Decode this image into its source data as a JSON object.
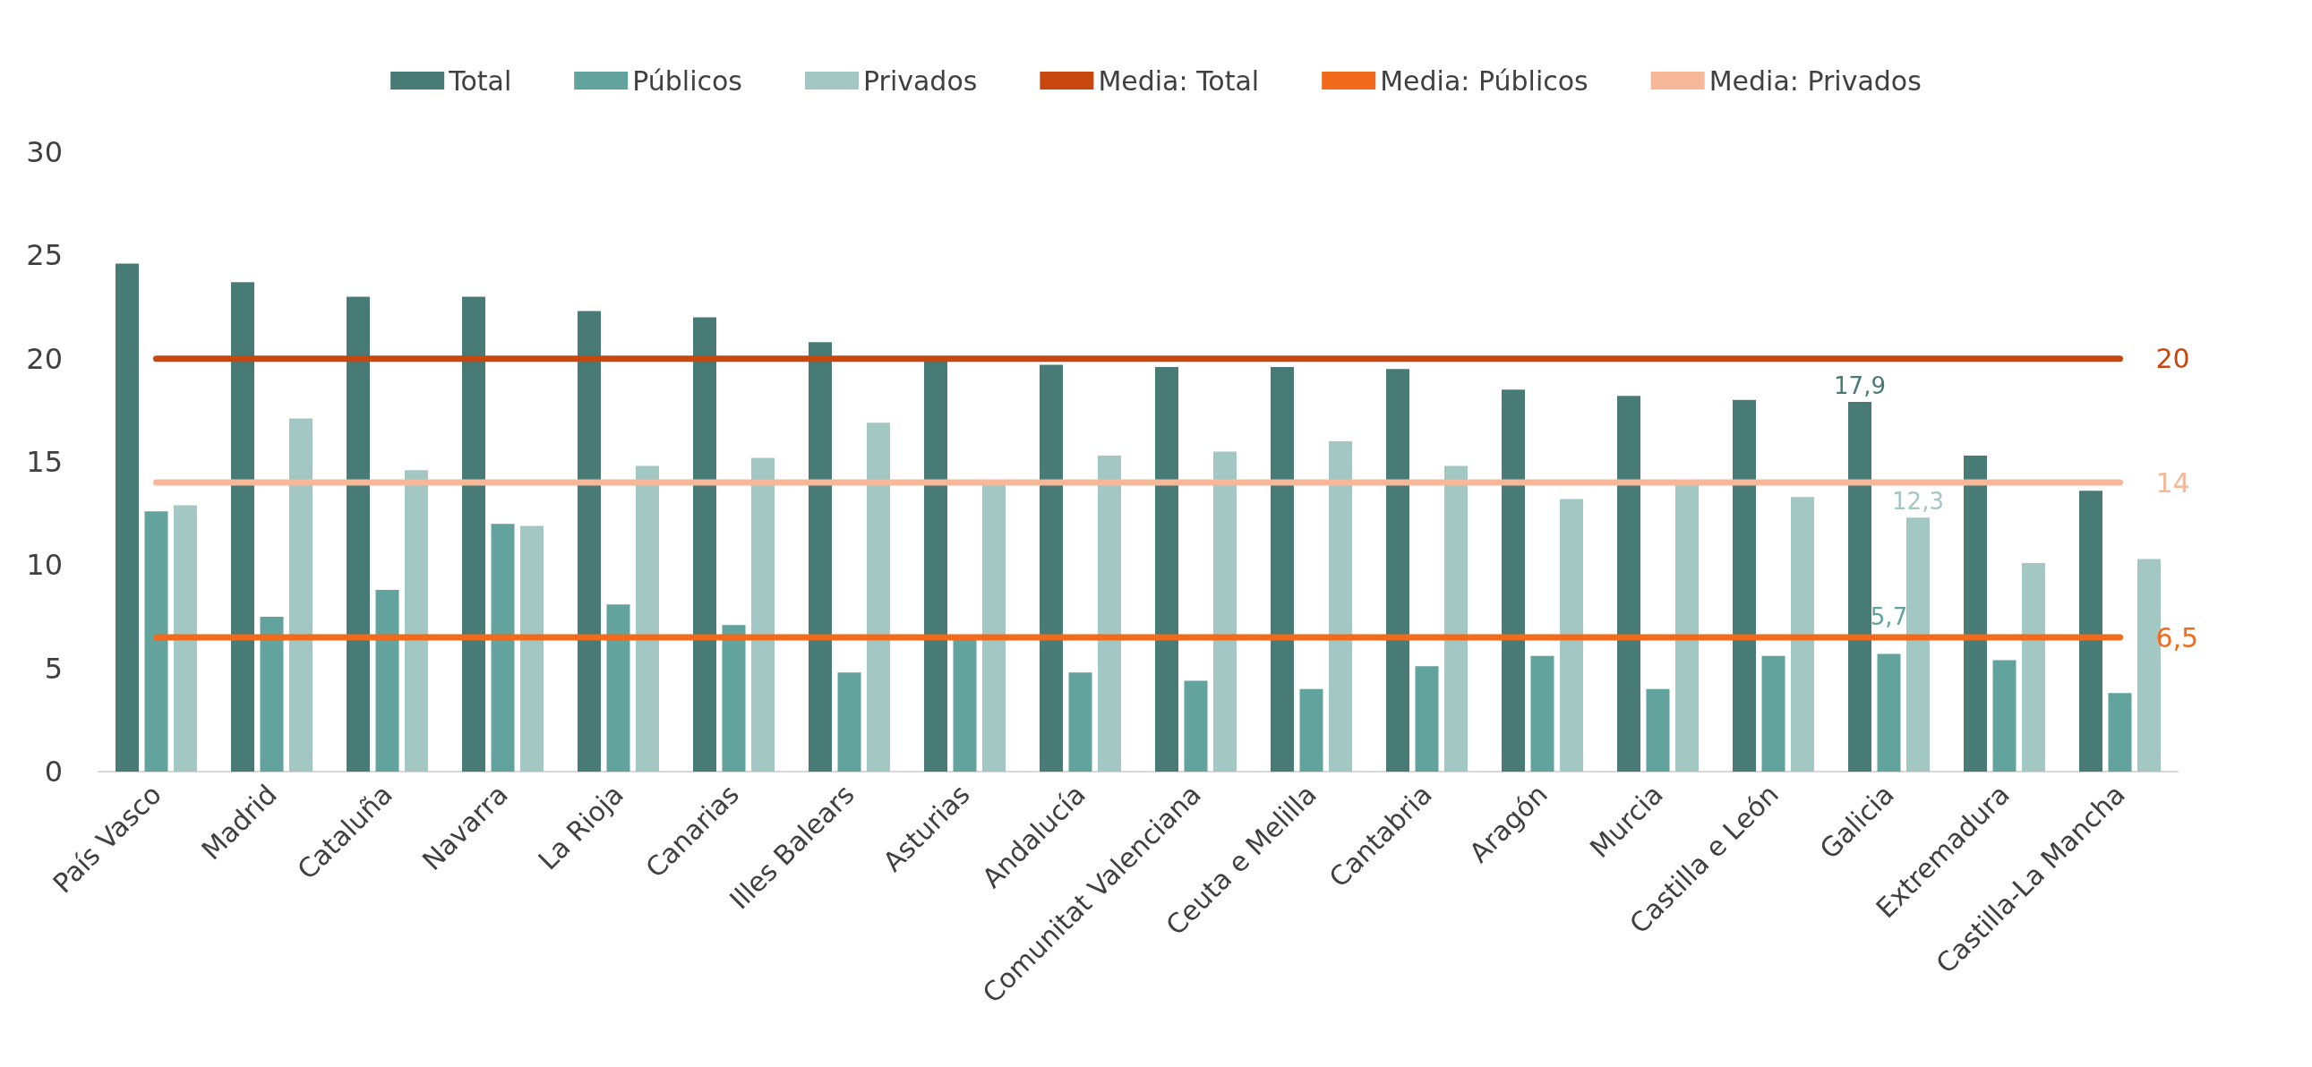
{
  "chart_data": {
    "type": "bar",
    "categories": [
      "País Vasco",
      "Madrid",
      "Cataluña",
      "Navarra",
      "La Rioja",
      "Canarias",
      "Illes Balears",
      "Asturias",
      "Andalucía",
      "Comunitat Valenciana",
      "Ceuta e Melilla",
      "Cantabria",
      "Aragón",
      "Murcia",
      "Castilla e León",
      "Galicia",
      "Extremadura",
      "Castilla-La Mancha"
    ],
    "series": [
      {
        "name": "Total",
        "color": "#487a76",
        "values": [
          24.6,
          23.7,
          23.0,
          23.0,
          22.3,
          22.0,
          20.8,
          19.9,
          19.7,
          19.6,
          19.6,
          19.5,
          18.5,
          18.2,
          18.0,
          17.9,
          15.3,
          13.6
        ],
        "value_labels": [
          null,
          null,
          null,
          null,
          null,
          null,
          null,
          null,
          null,
          null,
          null,
          null,
          null,
          null,
          null,
          "17,9",
          null,
          null
        ]
      },
      {
        "name": "Públicos",
        "color": "#62a39e",
        "values": [
          12.6,
          7.5,
          8.8,
          12.0,
          8.1,
          7.1,
          4.8,
          6.4,
          4.8,
          4.4,
          4.0,
          5.1,
          5.6,
          4.0,
          5.6,
          5.7,
          5.4,
          3.8
        ],
        "value_labels": [
          null,
          null,
          null,
          null,
          null,
          null,
          null,
          null,
          null,
          null,
          null,
          null,
          null,
          null,
          null,
          "5,7",
          null,
          null
        ]
      },
      {
        "name": "Privados",
        "color": "#a3c7c3",
        "values": [
          12.9,
          17.1,
          14.6,
          11.9,
          14.8,
          15.2,
          16.9,
          13.9,
          15.3,
          15.5,
          16.0,
          14.8,
          13.2,
          13.9,
          13.3,
          12.3,
          10.1,
          10.3
        ],
        "value_labels": [
          null,
          null,
          null,
          null,
          null,
          null,
          null,
          null,
          null,
          null,
          null,
          null,
          null,
          null,
          null,
          "12,3",
          null,
          null
        ]
      },
      {
        "name": "Media: Total",
        "type": "line",
        "color": "#c8470e",
        "values": [
          20,
          20,
          20,
          20,
          20,
          20,
          20,
          20,
          20,
          20,
          20,
          20,
          20,
          20,
          20,
          20,
          20,
          20
        ],
        "value_labels": [
          null,
          null,
          null,
          null,
          null,
          null,
          null,
          null,
          null,
          null,
          null,
          null,
          null,
          null,
          null,
          null,
          null,
          "20"
        ]
      },
      {
        "name": "Media: Públicos",
        "type": "line",
        "color": "#f26b1d",
        "values": [
          6.5,
          6.5,
          6.5,
          6.5,
          6.5,
          6.5,
          6.5,
          6.5,
          6.5,
          6.5,
          6.5,
          6.5,
          6.5,
          6.5,
          6.5,
          6.5,
          6.5,
          6.5
        ],
        "value_labels": [
          null,
          null,
          null,
          null,
          null,
          null,
          null,
          null,
          null,
          null,
          null,
          null,
          null,
          null,
          null,
          null,
          null,
          "6,5"
        ]
      },
      {
        "name": "Media: Privados",
        "type": "line",
        "color": "#f7b899",
        "values": [
          14,
          14,
          14,
          14,
          14,
          14,
          14,
          14,
          14,
          14,
          14,
          14,
          14,
          14,
          14,
          14,
          14,
          14
        ],
        "value_labels": [
          null,
          null,
          null,
          null,
          null,
          null,
          null,
          null,
          null,
          null,
          null,
          null,
          null,
          null,
          null,
          null,
          null,
          "14"
        ]
      }
    ],
    "ylim": [
      0,
      30
    ],
    "yticks": [
      0,
      5,
      10,
      15,
      20,
      25,
      30
    ],
    "grid": false,
    "legend": "top",
    "marker": "none",
    "line_style": "solid"
  }
}
